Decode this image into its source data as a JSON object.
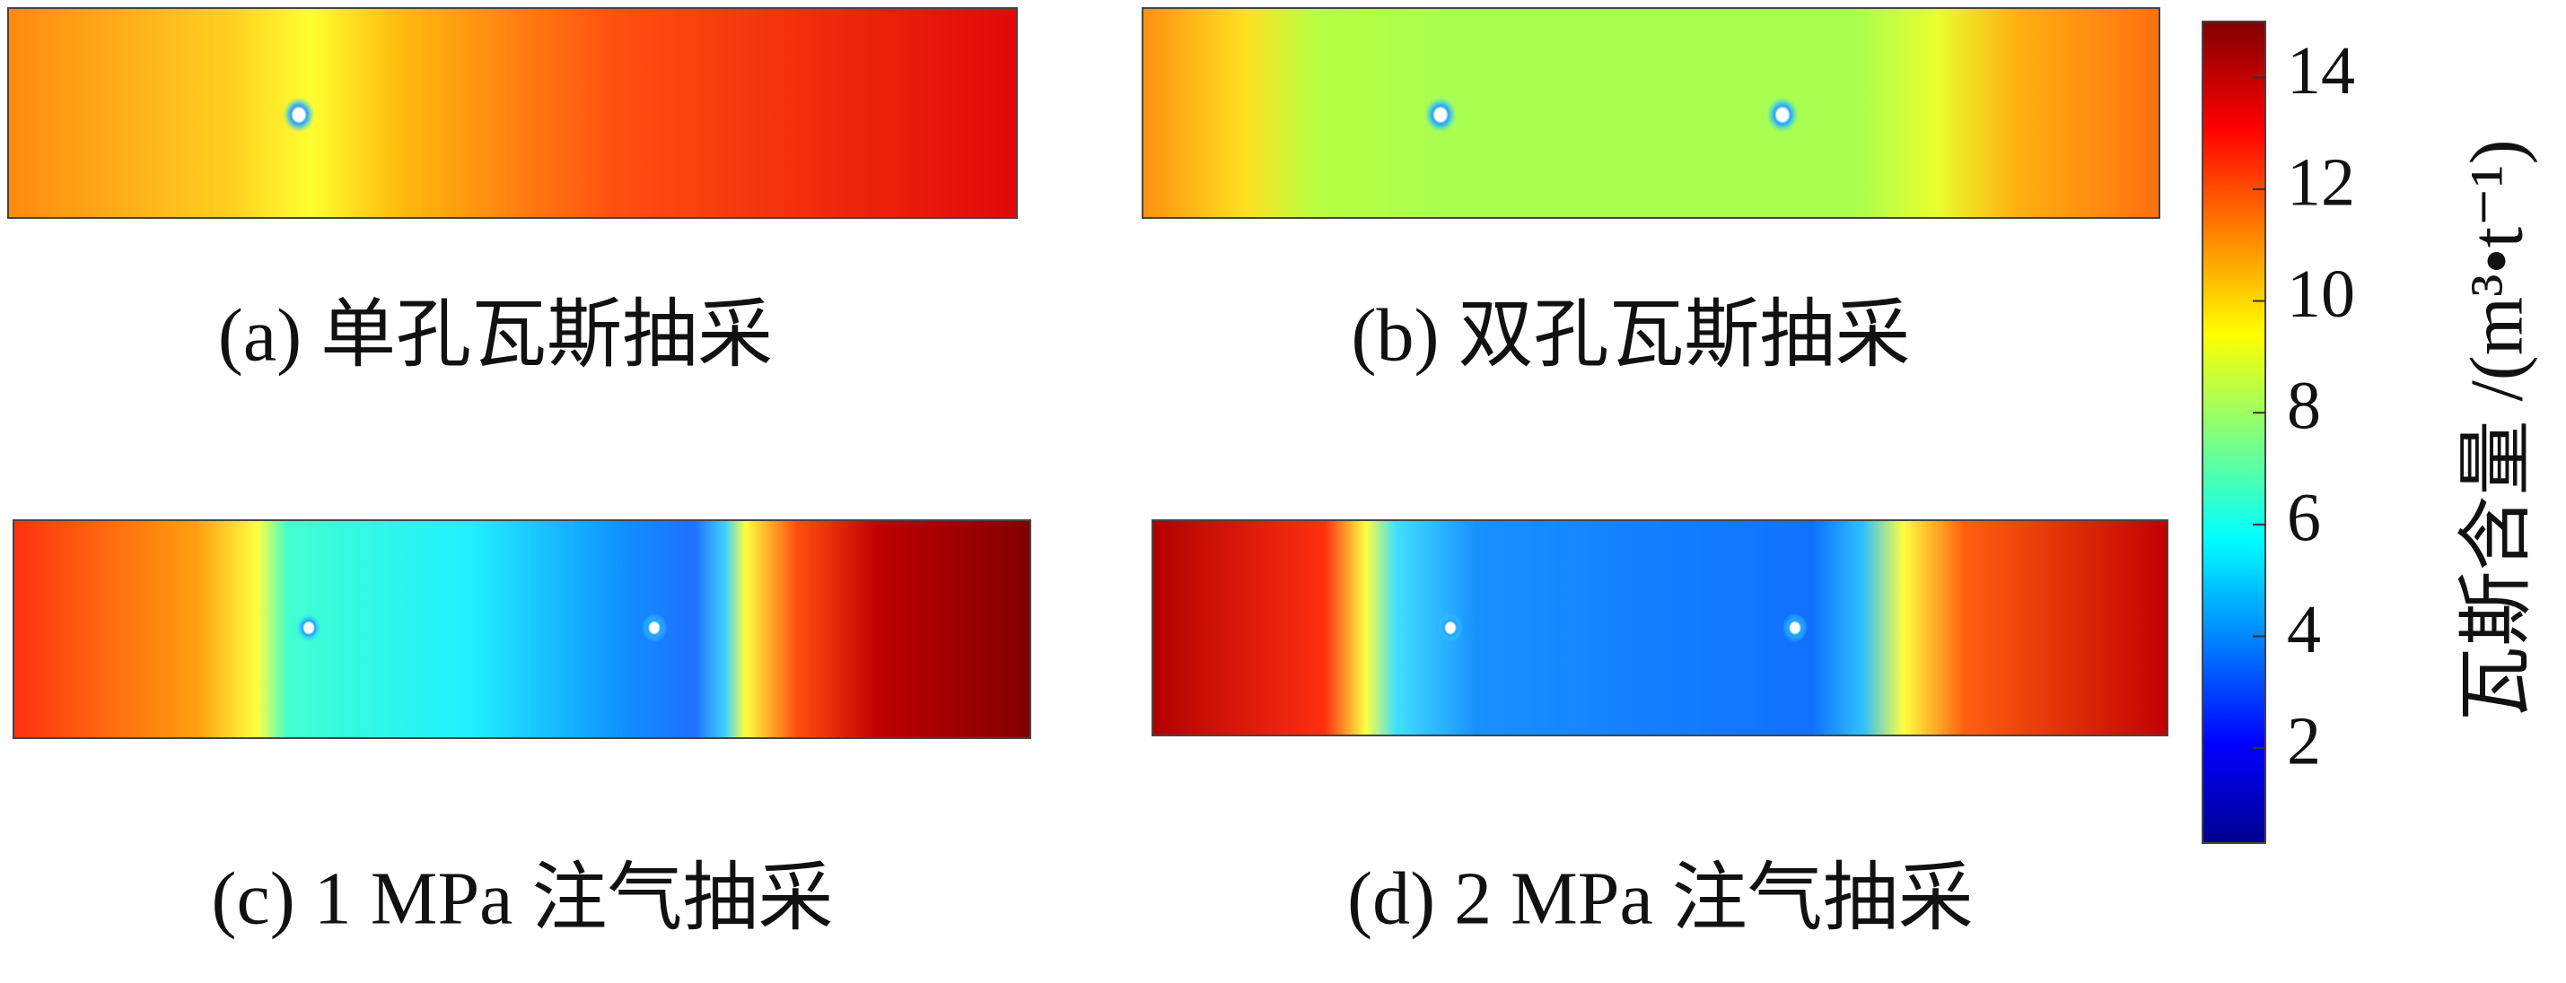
{
  "panels": [
    {
      "caption": "(a) 单孔瓦斯抽采"
    },
    {
      "caption": "(b) 双孔瓦斯抽采"
    },
    {
      "caption": "(c) 1 MPa 注气抽采"
    },
    {
      "caption": "(d) 2 MPa 注气抽采"
    }
  ],
  "colorbar": {
    "label": "瓦斯含量 /(m³•t⁻¹)",
    "lim": [
      0.3,
      15
    ],
    "ticks": [
      2,
      4,
      6,
      8,
      10,
      12,
      14
    ]
  }
}
